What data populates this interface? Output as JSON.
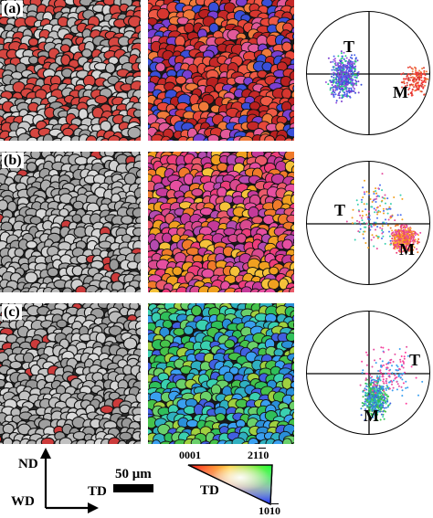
{
  "rows": [
    {
      "label": "(a)",
      "band_palette": [
        "#d6362f",
        "#e8473a",
        "#c52828",
        "#ef5a45",
        "#b92020",
        "#7a3fd0",
        "#3a4fd8",
        "#e25a9a",
        "#f07a3a"
      ],
      "iq_base": "#a7a7a7",
      "iq_accent": "#d64640",
      "pole_labels": [
        {
          "text": "T",
          "pos": "upper-left"
        },
        {
          "text": "M",
          "pos": "lower-right"
        }
      ]
    },
    {
      "label": "(b)",
      "band_palette": [
        "#e64fa0",
        "#d94a8f",
        "#f07a2a",
        "#c53a9a",
        "#ea5a6a",
        "#f0a020",
        "#ec3d7a",
        "#b44bb0",
        "#f5c23a"
      ],
      "iq_base": "#8f8f8f",
      "iq_accent": "#cc3b3b",
      "pole_labels": [
        {
          "text": "T",
          "pos": "upper-left"
        },
        {
          "text": "M",
          "pos": "lower-right"
        }
      ]
    },
    {
      "label": "(c)",
      "band_palette": [
        "#2fbf5a",
        "#3ad0b0",
        "#2a8fd8",
        "#46c24a",
        "#4160e0",
        "#6ad06a",
        "#30b0c0",
        "#a0d040",
        "#3aa0f0"
      ],
      "iq_base": "#8f8f8f",
      "iq_accent": "#cc3b3b",
      "pole_labels": [
        {
          "text": "T",
          "pos": "right"
        },
        {
          "text": "M",
          "pos": "lower-center"
        }
      ]
    }
  ],
  "axes": {
    "nd": "ND",
    "td": "TD",
    "wd": "WD"
  },
  "scale_bar": {
    "label": "50 μm"
  },
  "legend": {
    "top_left": "0001",
    "top_right": "2110",
    "bottom": "1010",
    "axis": "TD"
  }
}
